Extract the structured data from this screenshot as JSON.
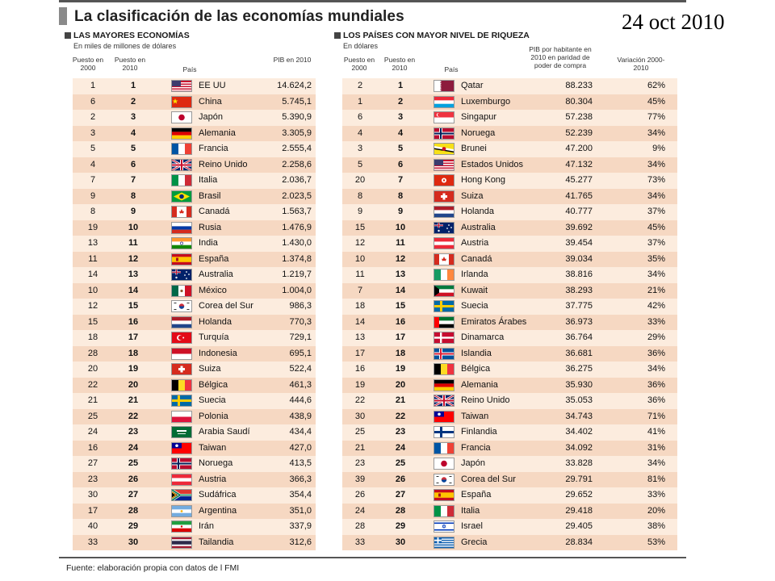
{
  "header": {
    "title": "La clasificación de las economías mundiales",
    "date": "24 oct 2010"
  },
  "left_table": {
    "title": "LAS MAYORES ECONOMÍAS",
    "subtitle": "En miles de millones de dólares",
    "col_2000": "Puesto en 2000",
    "col_2010": "Puesto en 2010",
    "col_country": "País",
    "col_value": "PIB en 2010",
    "rows": [
      {
        "r2000": "1",
        "r2010": "1",
        "country": "EE UU",
        "value": "14.624,2",
        "flag": "us-flag"
      },
      {
        "r2000": "6",
        "r2010": "2",
        "country": "China",
        "value": "5.745,1",
        "flag": "china-flag"
      },
      {
        "r2000": "2",
        "r2010": "3",
        "country": "Japón",
        "value": "5.390,9",
        "flag": "japan-flag"
      },
      {
        "r2000": "3",
        "r2010": "4",
        "country": "Alemania",
        "value": "3.305,9",
        "flag": "germany-flag"
      },
      {
        "r2000": "5",
        "r2010": "5",
        "country": "Francia",
        "value": "2.555,4",
        "flag": "france-flag"
      },
      {
        "r2000": "4",
        "r2010": "6",
        "country": "Reino Unido",
        "value": "2.258,6",
        "flag": "uk-flag"
      },
      {
        "r2000": "7",
        "r2010": "7",
        "country": "Italia",
        "value": "2.036,7",
        "flag": "italy-flag"
      },
      {
        "r2000": "9",
        "r2010": "8",
        "country": "Brasil",
        "value": "2.023,5",
        "flag": "brazil-flag"
      },
      {
        "r2000": "8",
        "r2010": "9",
        "country": "Canadá",
        "value": "1.563,7",
        "flag": "canada-flag"
      },
      {
        "r2000": "19",
        "r2010": "10",
        "country": "Rusia",
        "value": "1.476,9",
        "flag": "russia-flag"
      },
      {
        "r2000": "13",
        "r2010": "11",
        "country": "India",
        "value": "1.430,0",
        "flag": "india-flag"
      },
      {
        "r2000": "11",
        "r2010": "12",
        "country": "España",
        "value": "1.374,8",
        "flag": "spain-flag"
      },
      {
        "r2000": "14",
        "r2010": "13",
        "country": "Australia",
        "value": "1.219,7",
        "flag": "australia-flag"
      },
      {
        "r2000": "10",
        "r2010": "14",
        "country": "México",
        "value": "1.004,0",
        "flag": "mexico-flag"
      },
      {
        "r2000": "12",
        "r2010": "15",
        "country": "Corea del Sur",
        "value": "986,3",
        "flag": "korea-flag"
      },
      {
        "r2000": "15",
        "r2010": "16",
        "country": "Holanda",
        "value": "770,3",
        "flag": "netherlands-flag"
      },
      {
        "r2000": "18",
        "r2010": "17",
        "country": "Turquía",
        "value": "729,1",
        "flag": "turkey-flag"
      },
      {
        "r2000": "28",
        "r2010": "18",
        "country": "Indonesia",
        "value": "695,1",
        "flag": "indonesia-flag"
      },
      {
        "r2000": "20",
        "r2010": "19",
        "country": "Suiza",
        "value": "522,4",
        "flag": "switzerland-flag"
      },
      {
        "r2000": "22",
        "r2010": "20",
        "country": "Bélgica",
        "value": "461,3",
        "flag": "belgium-flag"
      },
      {
        "r2000": "21",
        "r2010": "21",
        "country": "Suecia",
        "value": "444,6",
        "flag": "sweden-flag"
      },
      {
        "r2000": "25",
        "r2010": "22",
        "country": "Polonia",
        "value": "438,9",
        "flag": "poland-flag"
      },
      {
        "r2000": "24",
        "r2010": "23",
        "country": "Arabia Saudí",
        "value": "434,4",
        "flag": "saudi-flag"
      },
      {
        "r2000": "16",
        "r2010": "24",
        "country": "Taiwan",
        "value": "427,0",
        "flag": "taiwan-flag"
      },
      {
        "r2000": "27",
        "r2010": "25",
        "country": "Noruega",
        "value": "413,5",
        "flag": "norway-flag"
      },
      {
        "r2000": "23",
        "r2010": "26",
        "country": "Austria",
        "value": "366,3",
        "flag": "austria-flag"
      },
      {
        "r2000": "30",
        "r2010": "27",
        "country": "Sudáfrica",
        "value": "354,4",
        "flag": "southafrica-flag"
      },
      {
        "r2000": "17",
        "r2010": "28",
        "country": "Argentina",
        "value": "351,0",
        "flag": "argentina-flag"
      },
      {
        "r2000": "40",
        "r2010": "29",
        "country": "Irán",
        "value": "337,9",
        "flag": "iran-flag"
      },
      {
        "r2000": "33",
        "r2010": "30",
        "country": "Tailandia",
        "value": "312,6",
        "flag": "thailand-flag"
      }
    ]
  },
  "right_table": {
    "title": "LOS PAÍSES CON MAYOR NIVEL DE RIQUEZA",
    "subtitle": "En dólares",
    "col_2000": "Puesto en 2000",
    "col_2010": "Puesto en 2010",
    "col_country": "País",
    "col_value": "PIB por habitante en 2010 en paridad de poder de compra",
    "col_var": "Variación 2000-2010",
    "rows": [
      {
        "r2000": "2",
        "r2010": "1",
        "country": "Qatar",
        "value": "88.233",
        "var": "62%",
        "flag": "qatar-flag"
      },
      {
        "r2000": "1",
        "r2010": "2",
        "country": "Luxemburgo",
        "value": "80.304",
        "var": "45%",
        "flag": "luxembourg-flag"
      },
      {
        "r2000": "6",
        "r2010": "3",
        "country": "Singapur",
        "value": "57.238",
        "var": "77%",
        "flag": "singapore-flag"
      },
      {
        "r2000": "4",
        "r2010": "4",
        "country": "Noruega",
        "value": "52.239",
        "var": "34%",
        "flag": "norway-flag"
      },
      {
        "r2000": "3",
        "r2010": "5",
        "country": "Brunei",
        "value": "47.200",
        "var": "9%",
        "flag": "brunei-flag"
      },
      {
        "r2000": "5",
        "r2010": "6",
        "country": "Estados Unidos",
        "value": "47.132",
        "var": "34%",
        "flag": "us-flag"
      },
      {
        "r2000": "20",
        "r2010": "7",
        "country": "Hong Kong",
        "value": "45.277",
        "var": "73%",
        "flag": "hongkong-flag"
      },
      {
        "r2000": "8",
        "r2010": "8",
        "country": "Suiza",
        "value": "41.765",
        "var": "34%",
        "flag": "switzerland-flag"
      },
      {
        "r2000": "9",
        "r2010": "9",
        "country": "Holanda",
        "value": "40.777",
        "var": "37%",
        "flag": "netherlands-flag"
      },
      {
        "r2000": "15",
        "r2010": "10",
        "country": "Australia",
        "value": "39.692",
        "var": "45%",
        "flag": "australia-flag"
      },
      {
        "r2000": "12",
        "r2010": "11",
        "country": "Austria",
        "value": "39.454",
        "var": "37%",
        "flag": "austria-flag"
      },
      {
        "r2000": "10",
        "r2010": "12",
        "country": "Canadá",
        "value": "39.034",
        "var": "35%",
        "flag": "canada-flag"
      },
      {
        "r2000": "11",
        "r2010": "13",
        "country": "Irlanda",
        "value": "38.816",
        "var": "34%",
        "flag": "ireland-flag"
      },
      {
        "r2000": "7",
        "r2010": "14",
        "country": "Kuwait",
        "value": "38.293",
        "var": "21%",
        "flag": "kuwait-flag"
      },
      {
        "r2000": "18",
        "r2010": "15",
        "country": "Suecia",
        "value": "37.775",
        "var": "42%",
        "flag": "sweden-flag"
      },
      {
        "r2000": "14",
        "r2010": "16",
        "country": "Emiratos Árabes",
        "value": "36.973",
        "var": "33%",
        "flag": "uae-flag"
      },
      {
        "r2000": "13",
        "r2010": "17",
        "country": "Dinamarca",
        "value": "36.764",
        "var": "29%",
        "flag": "denmark-flag"
      },
      {
        "r2000": "17",
        "r2010": "18",
        "country": "Islandia",
        "value": "36.681",
        "var": "36%",
        "flag": "iceland-flag"
      },
      {
        "r2000": "16",
        "r2010": "19",
        "country": "Bélgica",
        "value": "36.275",
        "var": "34%",
        "flag": "belgium-flag"
      },
      {
        "r2000": "19",
        "r2010": "20",
        "country": "Alemania",
        "value": "35.930",
        "var": "36%",
        "flag": "germany-flag"
      },
      {
        "r2000": "22",
        "r2010": "21",
        "country": "Reino Unido",
        "value": "35.053",
        "var": "36%",
        "flag": "uk-flag"
      },
      {
        "r2000": "30",
        "r2010": "22",
        "country": "Taiwan",
        "value": "34.743",
        "var": "71%",
        "flag": "taiwan-flag"
      },
      {
        "r2000": "25",
        "r2010": "23",
        "country": "Finlandia",
        "value": "34.402",
        "var": "41%",
        "flag": "finland-flag"
      },
      {
        "r2000": "21",
        "r2010": "24",
        "country": "Francia",
        "value": "34.092",
        "var": "31%",
        "flag": "france-flag"
      },
      {
        "r2000": "23",
        "r2010": "25",
        "country": "Japón",
        "value": "33.828",
        "var": "34%",
        "flag": "japan-flag"
      },
      {
        "r2000": "39",
        "r2010": "26",
        "country": "Corea del Sur",
        "value": "29.791",
        "var": "81%",
        "flag": "korea-flag"
      },
      {
        "r2000": "26",
        "r2010": "27",
        "country": "España",
        "value": "29.652",
        "var": "33%",
        "flag": "spain-flag"
      },
      {
        "r2000": "24",
        "r2010": "28",
        "country": "Italia",
        "value": "29.418",
        "var": "20%",
        "flag": "italy-flag"
      },
      {
        "r2000": "28",
        "r2010": "29",
        "country": "Israel",
        "value": "29.405",
        "var": "38%",
        "flag": "israel-flag"
      },
      {
        "r2000": "33",
        "r2010": "30",
        "country": "Grecia",
        "value": "28.834",
        "var": "53%",
        "flag": "greece-flag"
      }
    ]
  },
  "footer": {
    "source": "Fuente: elaboración propia con datos de l FMI"
  }
}
